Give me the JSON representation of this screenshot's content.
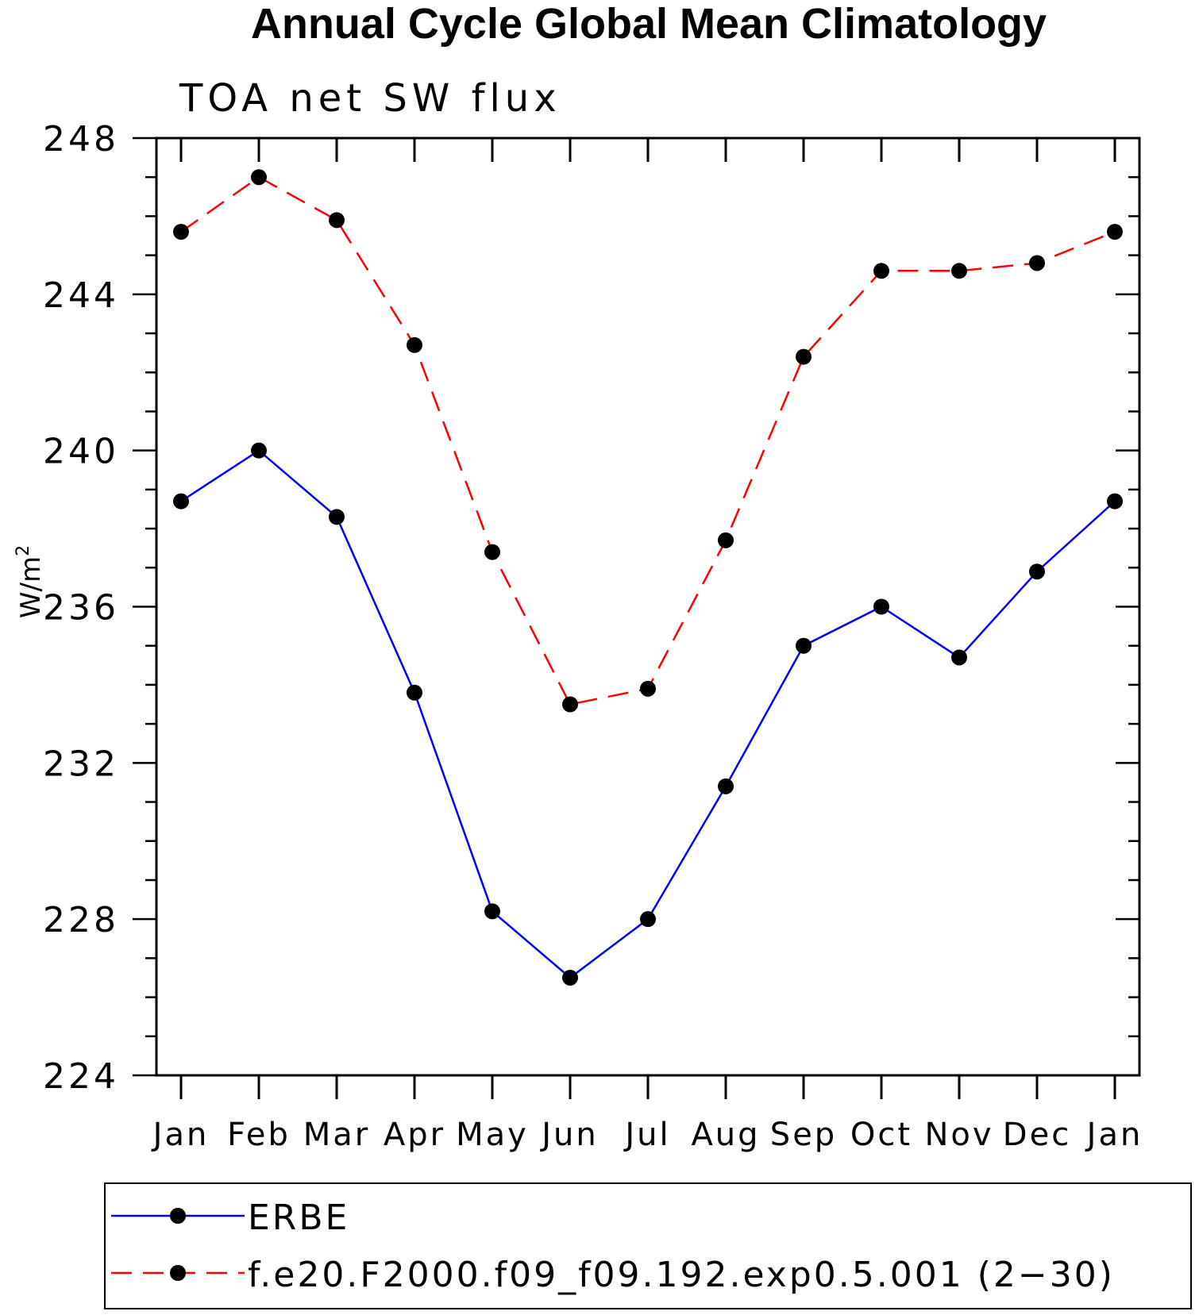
{
  "chart_data": {
    "type": "line",
    "title": "Annual Cycle Global Mean Climatology",
    "subtitle": "TOA net SW flux",
    "xlabel": "",
    "ylabel": "W/m",
    "ylabel_superscript": "2",
    "ylim": [
      224,
      248
    ],
    "yticks": [
      224,
      228,
      232,
      236,
      240,
      244,
      248
    ],
    "ytick_labels": [
      "224",
      "228",
      "232",
      "236",
      "240",
      "244",
      "248"
    ],
    "categories": [
      "Jan",
      "Feb",
      "Mar",
      "Apr",
      "May",
      "Jun",
      "Jul",
      "Aug",
      "Sep",
      "Oct",
      "Nov",
      "Dec",
      "Jan"
    ],
    "grid": false,
    "legend_position": "bottom",
    "series": [
      {
        "name": "ERBE",
        "color": "#0000ff",
        "dash": "solid",
        "values": [
          238.7,
          240.0,
          238.3,
          233.8,
          228.2,
          226.5,
          228.0,
          231.4,
          235.0,
          236.0,
          234.7,
          236.9,
          238.7
        ]
      },
      {
        "name": "f.e20.F2000.f09_f09.192.exp0.5.001 (2−30)",
        "color": "#ff0000",
        "dash": "dashed",
        "values": [
          245.6,
          247.0,
          245.9,
          242.7,
          237.4,
          233.5,
          233.9,
          237.7,
          242.4,
          244.6,
          244.6,
          244.8,
          245.6
        ]
      }
    ]
  }
}
